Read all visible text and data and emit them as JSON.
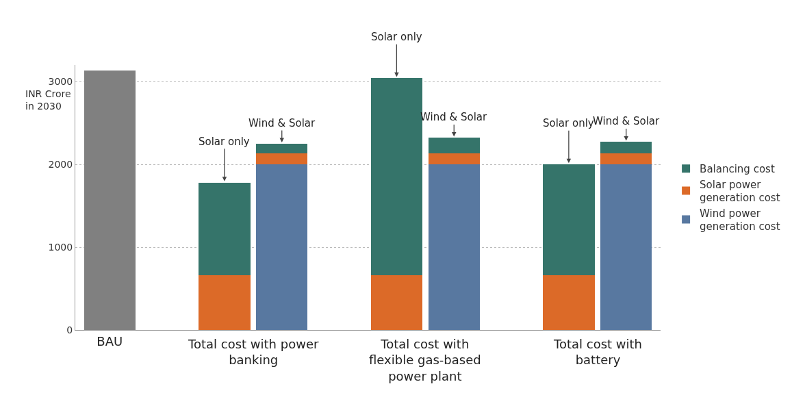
{
  "chart_data": {
    "type": "bar",
    "stacked": true,
    "categories": [
      "BAU",
      null,
      null,
      null,
      null,
      null,
      null
    ],
    "ylabel": "INR Crore in 2030",
    "ylim": [
      0,
      3200
    ],
    "yticks": [
      0,
      1000,
      2000,
      3000
    ],
    "grid": "y",
    "legend": "right",
    "series": [
      {
        "color": "#808080",
        "values": [
          3130,
          null,
          null,
          null,
          null,
          null,
          null
        ]
      },
      {
        "name": "Wind power generation cost",
        "color": "#5878a0",
        "values": [
          null,
          null,
          2000,
          null,
          2000,
          null,
          2000
        ]
      },
      {
        "name": "Solar power generation cost",
        "color": "#dc6a28",
        "values": [
          null,
          660,
          130,
          660,
          130,
          660,
          130
        ]
      },
      {
        "name": "Balancing cost",
        "color": "#35746a",
        "values": [
          null,
          1120,
          120,
          2380,
          190,
          1340,
          140
        ]
      }
    ],
    "annotations": [
      "Total cost with power banking",
      "Total cost with flexible gas-based power plant",
      "Total cost with battery",
      {
        "text": "Solar only",
        "y": 1780
      },
      {
        "text": "Wind & Solar",
        "y": 2250
      },
      {
        "text": "Solar only",
        "y": 3040
      },
      {
        "text": "Wind & Solar",
        "y": 2320
      },
      {
        "text": "Solar only",
        "y": 2000
      },
      {
        "text": "Wind & Solar",
        "y": 2270
      }
    ]
  }
}
